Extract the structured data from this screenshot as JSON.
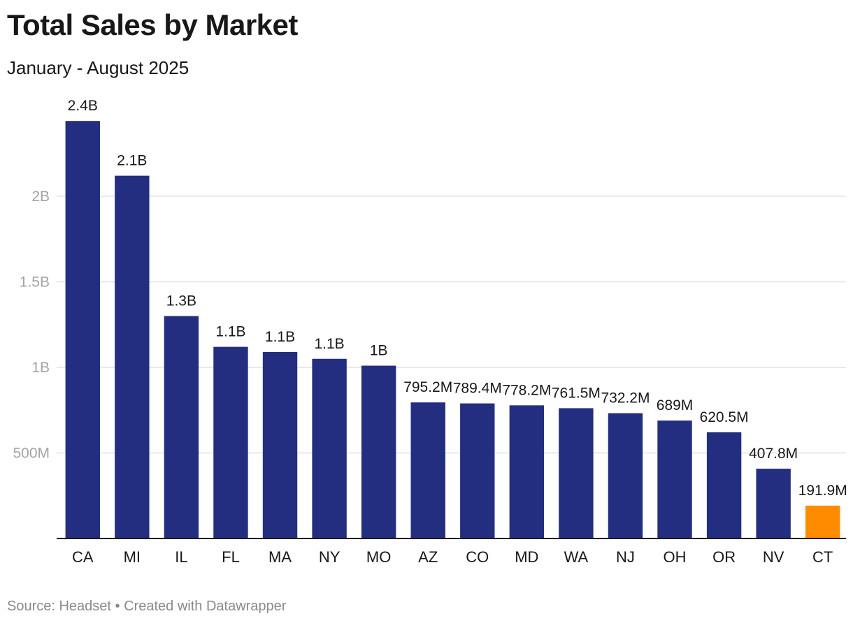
{
  "title": "Total Sales by Market",
  "subtitle": "January - August 2025",
  "footer": {
    "source_text": "Source: Headset",
    "separator": "•",
    "credit_text": "Created with Datawrapper"
  },
  "colors": {
    "bar": "#232e80",
    "highlight": "#ff8c00",
    "grid": "#e2e2e2",
    "axis": "#181818"
  },
  "chart_data": {
    "type": "bar",
    "title": "Total Sales by Market",
    "subtitle": "January - August 2025",
    "xlabel": "",
    "ylabel": "",
    "ylim": [
      0,
      2500000000
    ],
    "yticks": [
      500000000,
      1000000000,
      1500000000,
      2000000000
    ],
    "ytick_labels": [
      "500M",
      "1B",
      "1.5B",
      "2B"
    ],
    "grid": true,
    "categories": [
      "CA",
      "MI",
      "IL",
      "FL",
      "MA",
      "NY",
      "MO",
      "AZ",
      "CO",
      "MD",
      "WA",
      "NJ",
      "OH",
      "OR",
      "NV",
      "CT"
    ],
    "values": [
      2440000000,
      2120000000,
      1300000000,
      1120000000,
      1090000000,
      1050000000,
      1010000000,
      795200000,
      789400000,
      778200000,
      761500000,
      732200000,
      689000000,
      620500000,
      407800000,
      191900000
    ],
    "value_labels": [
      "2.4B",
      "2.1B",
      "1.3B",
      "1.1B",
      "1.1B",
      "1.1B",
      "1B",
      "795.2M",
      "789.4M",
      "778.2M",
      "761.5M",
      "732.2M",
      "689M",
      "620.5M",
      "407.8M",
      "191.9M"
    ],
    "highlight_category": "CT"
  }
}
